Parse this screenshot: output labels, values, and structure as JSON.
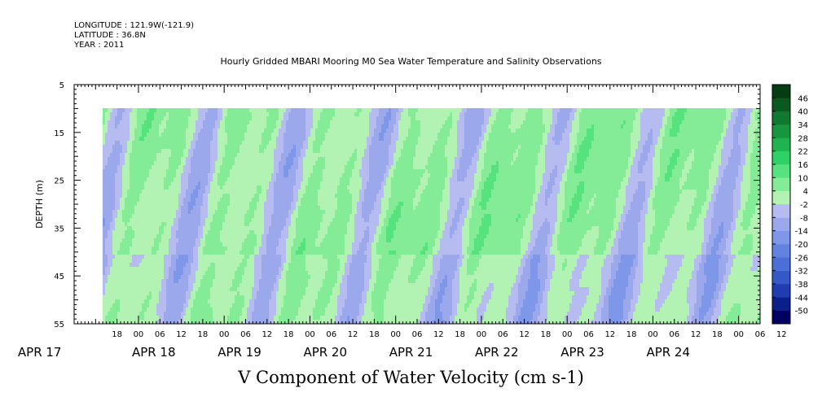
{
  "header": {
    "longitude": "LONGITUDE : 121.9W(-121.9)",
    "latitude": "LATITUDE : 36.8N",
    "year": "YEAR : 2011"
  },
  "chart_data": {
    "type": "heatmap",
    "title": "Hourly Gridded MBARI Mooring M0 Sea Water Temperature and Salinity Observations",
    "subtitle": "V Component of Water Velocity (cm s-1)",
    "ylabel": "DEPTH (m)",
    "xlabel": "",
    "y_ticks": [
      5,
      15,
      25,
      35,
      45,
      55
    ],
    "y_range": [
      5,
      55
    ],
    "data_depth_range": [
      10,
      55
    ],
    "x_hour_ticks": [
      "18",
      "00",
      "06",
      "12",
      "18",
      "00",
      "06",
      "12",
      "18",
      "00",
      "06",
      "12",
      "18",
      "00",
      "06",
      "12",
      "18",
      "00",
      "06",
      "12",
      "18",
      "00",
      "06",
      "12",
      "18",
      "00",
      "06",
      "12",
      "18",
      "00",
      "06",
      "12"
    ],
    "x_date_labels": [
      "APR 17",
      "APR 18",
      "APR 19",
      "APR 20",
      "APR 21",
      "APR 22",
      "APR 23",
      "APR 24"
    ],
    "x_range_hours_from_apr17_00": [
      6,
      198
    ],
    "data_start_hours": 14,
    "colorbar": {
      "levels": [
        -50,
        -44,
        -38,
        -32,
        -26,
        -20,
        -14,
        -8,
        -2,
        4,
        10,
        16,
        22,
        28,
        34,
        40,
        46
      ],
      "labels": [
        "-50",
        "-44",
        "-38",
        "-32",
        "-26",
        "-20",
        "-14",
        "-8",
        "-2",
        "4",
        "10",
        "16",
        "22",
        "28",
        "34",
        "40",
        "46"
      ],
      "colors": [
        "#000060",
        "#0b1f8a",
        "#1f3cb0",
        "#3558c8",
        "#4a6fd8",
        "#6283e0",
        "#7e97e8",
        "#9ba9ec",
        "#b7bcf0",
        "#b2f2b2",
        "#84ec96",
        "#56e27c",
        "#2ed264",
        "#20b450",
        "#17963f",
        "#10782f",
        "#0a5a20",
        "#053c12"
      ]
    },
    "field_range_cm_s": [
      -16,
      16
    ]
  }
}
